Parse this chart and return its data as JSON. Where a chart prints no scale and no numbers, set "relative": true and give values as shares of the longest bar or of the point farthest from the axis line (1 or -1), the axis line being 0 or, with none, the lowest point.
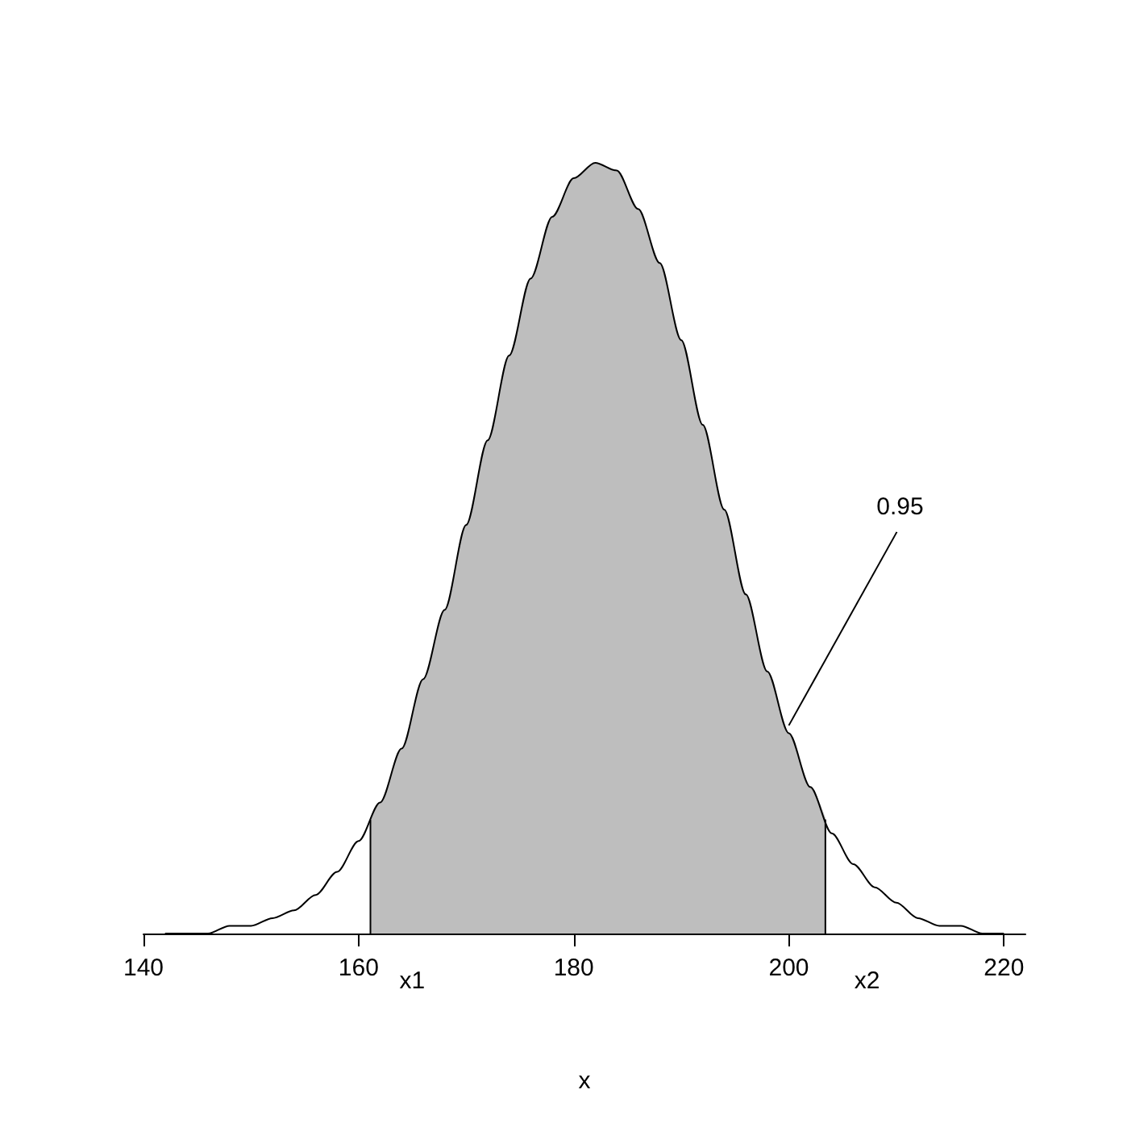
{
  "chart_data": {
    "type": "line",
    "relative": true,
    "xlabel": "x",
    "xlim": [
      140,
      222
    ],
    "xticks": [
      140,
      160,
      180,
      200,
      220
    ],
    "series": [
      {
        "type": "area",
        "color": "#bebebe",
        "x": [
          161.1,
          162,
          164,
          166,
          168,
          170,
          172,
          174,
          176,
          178,
          180,
          182,
          184,
          186,
          188,
          190,
          192,
          194,
          196,
          198,
          200,
          202,
          203.4
        ],
        "values": [
          0.15,
          0.17,
          0.24,
          0.33,
          0.42,
          0.53,
          0.64,
          0.75,
          0.85,
          0.93,
          0.98,
          1.0,
          0.99,
          0.94,
          0.87,
          0.77,
          0.66,
          0.55,
          0.44,
          0.34,
          0.26,
          0.19,
          0.15
        ]
      },
      {
        "color": "#000000",
        "x": [
          142,
          144,
          146,
          148,
          150,
          152,
          154,
          156,
          158,
          160,
          162,
          164,
          166,
          168,
          170,
          172,
          174,
          176,
          178,
          180,
          182,
          184,
          186,
          188,
          190,
          192,
          194,
          196,
          198,
          200,
          202,
          204,
          206,
          208,
          210,
          212,
          214,
          216,
          218,
          220
        ],
        "values": [
          0.0,
          0.0,
          0.0,
          0.01,
          0.01,
          0.02,
          0.03,
          0.05,
          0.08,
          0.12,
          0.17,
          0.24,
          0.33,
          0.42,
          0.53,
          0.64,
          0.75,
          0.85,
          0.93,
          0.98,
          1.0,
          0.99,
          0.94,
          0.87,
          0.77,
          0.66,
          0.55,
          0.44,
          0.34,
          0.26,
          0.19,
          0.13,
          0.09,
          0.06,
          0.04,
          0.02,
          0.01,
          0.01,
          0.0,
          0.0
        ]
      }
    ],
    "ref_lines": [
      {
        "axis": "x",
        "value": 161.1,
        "label": "x1"
      },
      {
        "axis": "x",
        "value": 203.4,
        "label": "x2"
      }
    ],
    "annotations": [
      {
        "text": "0.95",
        "x": 200,
        "y": 0.27
      }
    ]
  }
}
